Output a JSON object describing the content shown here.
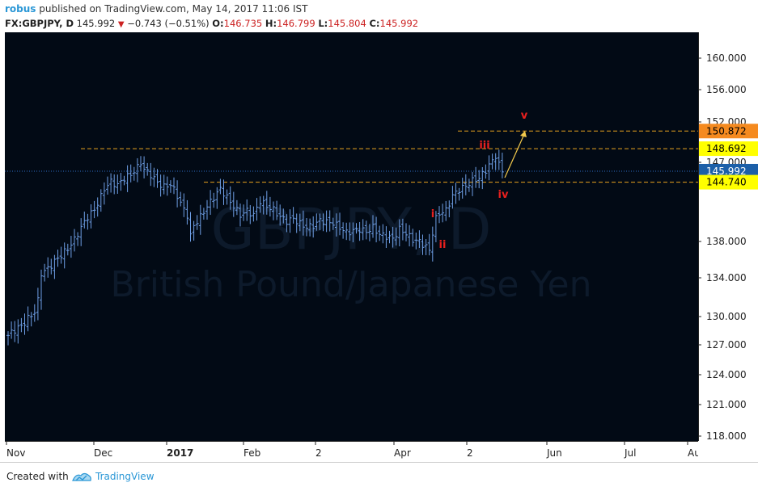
{
  "header": {
    "publisher": "robus",
    "published_text": "published on TradingView.com, May 14, 2017 11:06 IST",
    "symbol": "FX:GBPJPY, D",
    "last": "145.992",
    "change": "−0.743 (−0.51%)",
    "open_label": "O:",
    "open": "146.735",
    "high_label": "H:",
    "high": "146.799",
    "low_label": "L:",
    "low": "145.804",
    "close_label": "C:",
    "close": "145.992"
  },
  "watermark": {
    "ticker": "GBPJPY, D",
    "name": "British Pound/Japanese Yen"
  },
  "footer": {
    "created_with": "Created with",
    "brand": "TradingView"
  },
  "colors": {
    "background": "#020a15",
    "bars": "#6f9fe6",
    "wave_label": "#e8201e",
    "guide": "#e8a21e",
    "arrow": "#f2c94c"
  },
  "chart_data": {
    "type": "ohlc",
    "symbol": "GBPJPY",
    "timeframe": "D",
    "ylim": [
      118,
      162
    ],
    "y_ticks": [
      160,
      156,
      152,
      147,
      138,
      134,
      130,
      127,
      124,
      121,
      118
    ],
    "y_tick_labels": [
      "160.000",
      "156.000",
      "152.000",
      "147.000",
      "138.000",
      "134.000",
      "130.000",
      "127.000",
      "124.000",
      "121.000",
      "118.000"
    ],
    "x_tick_labels": [
      "Nov",
      "Dec",
      "2017",
      "Feb",
      "2",
      "Apr",
      "2",
      "Jun",
      "Jul",
      "Au"
    ],
    "price_levels": [
      {
        "value": 150.872,
        "label": "150.872",
        "bg": "#f58a1f",
        "fg": "#000000"
      },
      {
        "value": 148.692,
        "label": "148.692",
        "bg": "#ffff00",
        "fg": "#000000"
      },
      {
        "value": 145.992,
        "label": "145.992",
        "bg": "#1c5fa8",
        "fg": "#ffffff"
      },
      {
        "value": 144.74,
        "label": "144.740",
        "bg": "#ffff00",
        "fg": "#000000"
      }
    ],
    "wave_labels": [
      "i",
      "ii",
      "iii",
      "iv",
      "v"
    ],
    "close_path": [
      [
        0,
        128
      ],
      [
        2,
        128.6
      ],
      [
        4,
        129
      ],
      [
        6,
        129.8
      ],
      [
        8,
        130.5
      ],
      [
        9,
        131.6
      ],
      [
        10,
        134.5
      ],
      [
        12,
        135
      ],
      [
        14,
        135.8
      ],
      [
        16,
        136.5
      ],
      [
        18,
        137.2
      ],
      [
        20,
        138.2
      ],
      [
        22,
        139.6
      ],
      [
        24,
        140.8
      ],
      [
        26,
        141.6
      ],
      [
        28,
        143.1
      ],
      [
        29,
        144
      ],
      [
        31,
        144.8
      ],
      [
        33,
        144.4
      ],
      [
        35,
        145.2
      ],
      [
        37,
        145.6
      ],
      [
        39,
        146.4
      ],
      [
        40,
        147
      ],
      [
        41,
        146.2
      ],
      [
        43,
        145.6
      ],
      [
        45,
        144.7
      ],
      [
        47,
        144.2
      ],
      [
        49,
        144.5
      ],
      [
        51,
        143.2
      ],
      [
        53,
        141.6
      ],
      [
        54,
        141
      ],
      [
        55,
        138.6
      ],
      [
        56,
        139.8
      ],
      [
        58,
        140.8
      ],
      [
        60,
        142
      ],
      [
        62,
        143
      ],
      [
        64,
        144
      ],
      [
        66,
        143
      ],
      [
        68,
        142
      ],
      [
        70,
        141
      ],
      [
        72,
        141.5
      ],
      [
        74,
        141
      ],
      [
        76,
        142.6
      ],
      [
        78,
        142
      ],
      [
        80,
        141.6
      ],
      [
        82,
        140.8
      ],
      [
        84,
        140.3
      ],
      [
        86,
        140.6
      ],
      [
        88,
        140
      ],
      [
        90,
        139.6
      ],
      [
        92,
        139.8
      ],
      [
        94,
        140.4
      ],
      [
        96,
        140.2
      ],
      [
        98,
        140.1
      ],
      [
        100,
        139.6
      ],
      [
        102,
        139
      ],
      [
        104,
        139.2
      ],
      [
        106,
        139.4
      ],
      [
        108,
        139.1
      ],
      [
        110,
        139.6
      ],
      [
        112,
        138.8
      ],
      [
        114,
        138.6
      ],
      [
        116,
        138.3
      ],
      [
        118,
        139.4
      ],
      [
        120,
        138.9
      ],
      [
        122,
        138.2
      ],
      [
        124,
        138
      ],
      [
        126,
        137.4
      ],
      [
        127,
        137
      ],
      [
        128,
        139
      ],
      [
        129,
        140.6
      ],
      [
        130,
        141.2
      ],
      [
        132,
        141.5
      ],
      [
        134,
        143.2
      ],
      [
        136,
        143.9
      ],
      [
        138,
        144.3
      ],
      [
        140,
        144.9
      ],
      [
        142,
        145.2
      ],
      [
        144,
        146.1
      ],
      [
        146,
        147.2
      ],
      [
        147,
        147.8
      ],
      [
        148,
        146.7
      ],
      [
        149,
        146
      ]
    ]
  }
}
